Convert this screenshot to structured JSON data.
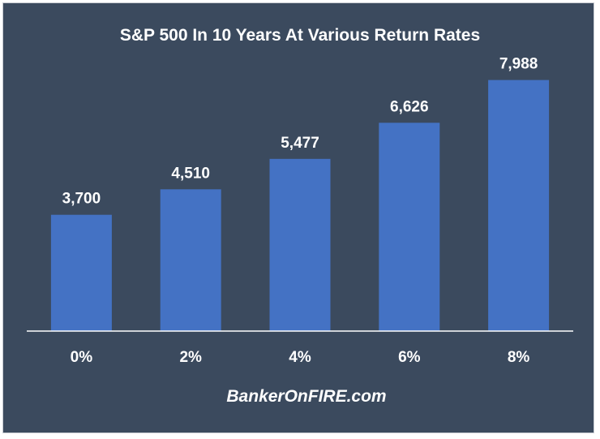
{
  "chart_data": {
    "type": "bar",
    "title": "S&P 500 In 10 Years At Various Return Rates",
    "categories": [
      "0%",
      "2%",
      "4%",
      "6%",
      "8%"
    ],
    "values": [
      3700,
      4510,
      5477,
      6626,
      7988
    ],
    "data_labels": [
      "3,700",
      "4,510",
      "5,477",
      "6,626",
      "7,988"
    ],
    "xlabel": "",
    "ylabel": "",
    "ylim": [
      0,
      9500
    ],
    "grid": false,
    "legend": "none",
    "bar_color": "#4472c4",
    "background_color": "#3b4a5e"
  },
  "footer": {
    "source_text": "BankerOnFIRE.com"
  }
}
